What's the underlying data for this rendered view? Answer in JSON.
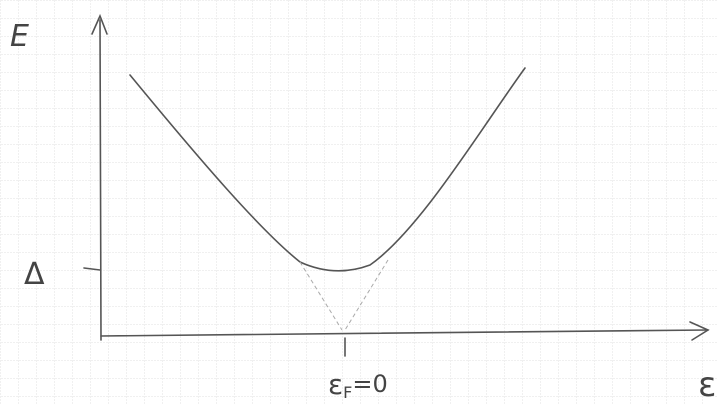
{
  "labels": {
    "y_axis": "E",
    "gap": "Δ",
    "fermi": {
      "base": "ε",
      "sub": "F",
      "rest": "=0"
    },
    "x_axis": "ε"
  }
}
